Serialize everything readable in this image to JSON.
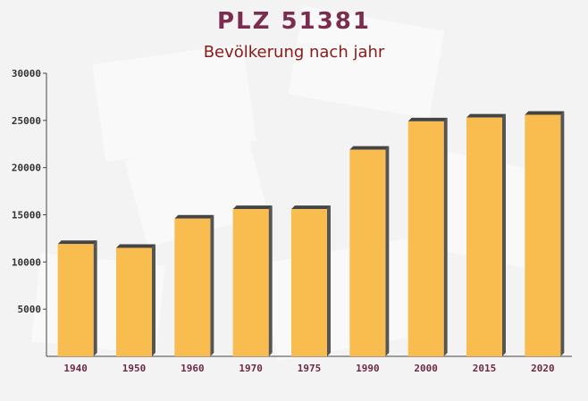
{
  "chart_data": {
    "type": "bar",
    "title": "PLZ 51381",
    "subtitle": "Bevölkerung nach jahr",
    "categories": [
      "1940",
      "1950",
      "1960",
      "1970",
      "1975",
      "1990",
      "2000",
      "2015",
      "2020"
    ],
    "values": [
      11900,
      11500,
      14600,
      15600,
      15600,
      21900,
      24900,
      25300,
      25600
    ],
    "color": "#f9bc4e",
    "ylim": [
      0,
      30000
    ],
    "yticks": [
      5000,
      10000,
      15000,
      20000,
      25000,
      30000
    ]
  }
}
